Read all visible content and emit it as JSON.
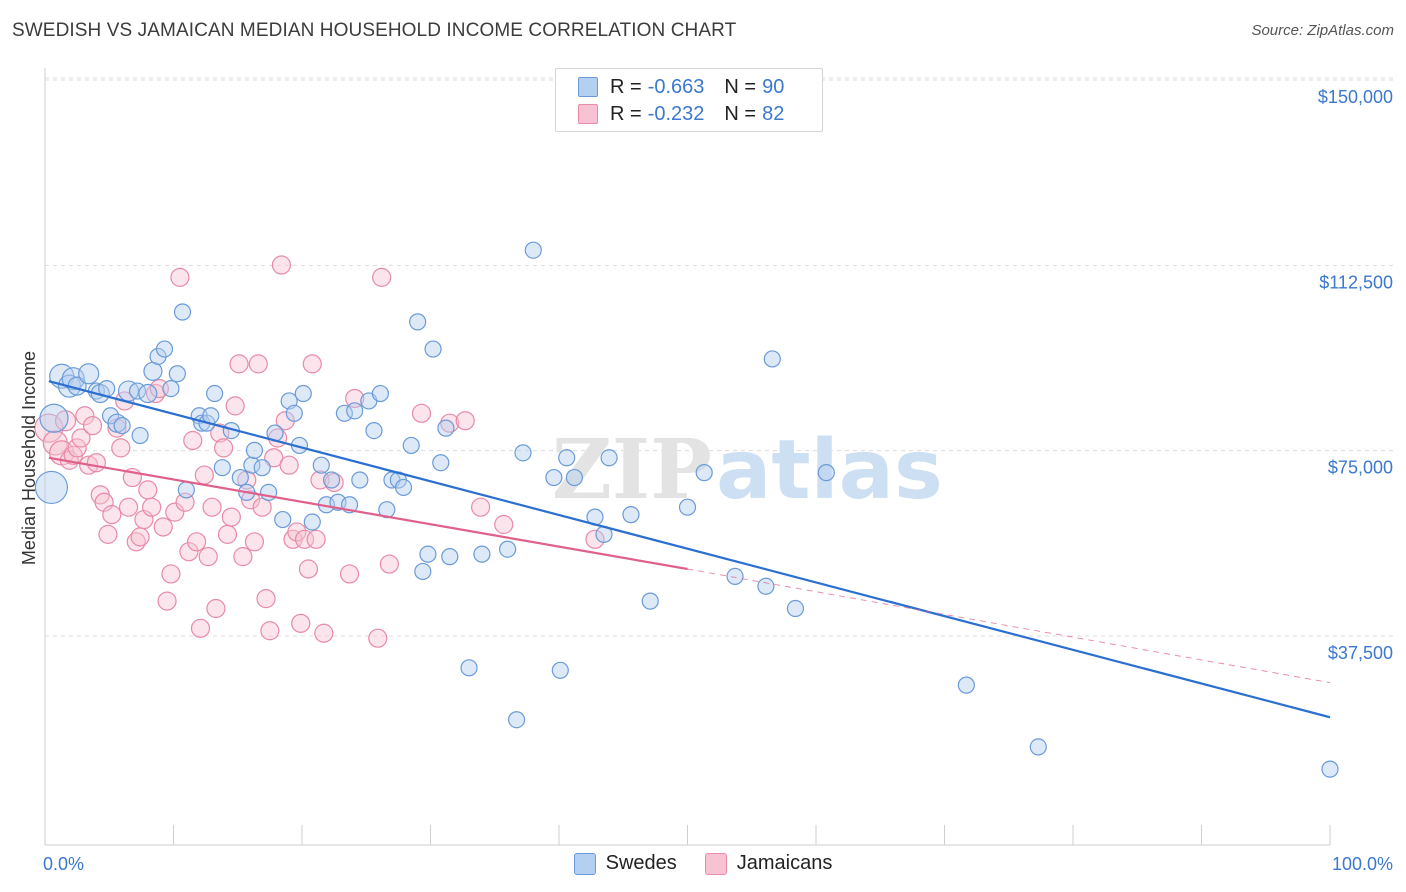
{
  "header": {
    "title": "SWEDISH VS JAMAICAN MEDIAN HOUSEHOLD INCOME CORRELATION CHART",
    "source": "Source: ZipAtlas.com"
  },
  "watermark": {
    "zip": "ZIP",
    "atlas": "atlas"
  },
  "legend": {
    "rows": [
      {
        "r_label": "R =",
        "r_value": "-0.663",
        "n_label": "N =",
        "n_value": "90"
      },
      {
        "r_label": "R =",
        "r_value": "-0.232",
        "n_label": "N =",
        "n_value": "82"
      }
    ]
  },
  "colors": {
    "swedes_fill": "#b5cff0",
    "swedes_stroke": "#6a9bd8",
    "swedes_line": "#2b6fd0",
    "jamaicans_fill": "#f7c3d2",
    "jamaicans_stroke": "#e88aa8",
    "jamaicans_line": "#e0608c",
    "grid": "#dcdcdc",
    "tick_label": "#3b78d0"
  },
  "chart_data": {
    "type": "scatter",
    "title": "SWEDISH VS JAMAICAN MEDIAN HOUSEHOLD INCOME CORRELATION CHART",
    "xlabel": "",
    "ylabel": "Median Household Income",
    "xlim": [
      0,
      100
    ],
    "ylim": [
      0,
      155000
    ],
    "x_tick_labels": [
      "0.0%",
      "100.0%"
    ],
    "y_ticks": [
      37500,
      75000,
      112500,
      150000
    ],
    "y_tick_labels": [
      "$37,500",
      "$75,000",
      "$112,500",
      "$150,000"
    ],
    "grid": true,
    "legend_position": "top-center and bottom",
    "series": [
      {
        "name": "Swedes",
        "r": -0.663,
        "n": 90,
        "trend": {
          "x0": 0.3,
          "y0": 92500,
          "x1": 100,
          "y1": 24500
        },
        "points": [
          [
            0.5,
            71000,
            16
          ],
          [
            0.7,
            85000,
            14
          ],
          [
            1.3,
            93500,
            12
          ],
          [
            1.9,
            91500,
            11
          ],
          [
            2.2,
            93000,
            11
          ],
          [
            2.5,
            91500,
            9
          ],
          [
            3.4,
            94000,
            10
          ],
          [
            4.0,
            90500,
            8
          ],
          [
            4.3,
            90000,
            9
          ],
          [
            4.8,
            91000,
            8
          ],
          [
            5.1,
            85500,
            8
          ],
          [
            5.6,
            84000,
            9
          ],
          [
            6.0,
            83500,
            8
          ],
          [
            6.5,
            90500,
            10
          ],
          [
            7.2,
            90500,
            8
          ],
          [
            7.4,
            81500,
            8
          ],
          [
            8.0,
            90000,
            9
          ],
          [
            8.4,
            94500,
            9
          ],
          [
            8.8,
            97500,
            8
          ],
          [
            9.3,
            99000,
            8
          ],
          [
            9.8,
            91000,
            8
          ],
          [
            10.3,
            94000,
            8
          ],
          [
            10.7,
            106500,
            8
          ],
          [
            11.0,
            70500,
            8
          ],
          [
            12.0,
            85500,
            8
          ],
          [
            12.2,
            84000,
            8
          ],
          [
            12.6,
            84000,
            8
          ],
          [
            12.9,
            85500,
            8
          ],
          [
            13.2,
            90000,
            8
          ],
          [
            13.8,
            75000,
            8
          ],
          [
            14.5,
            82500,
            8
          ],
          [
            15.2,
            73000,
            8
          ],
          [
            15.7,
            70000,
            8
          ],
          [
            16.1,
            75500,
            8
          ],
          [
            16.3,
            78500,
            8
          ],
          [
            16.9,
            75000,
            8
          ],
          [
            17.4,
            70000,
            8
          ],
          [
            17.9,
            82000,
            8
          ],
          [
            18.5,
            64500,
            8
          ],
          [
            19.0,
            88500,
            8
          ],
          [
            19.4,
            86000,
            8
          ],
          [
            19.8,
            79500,
            8
          ],
          [
            20.1,
            90000,
            8
          ],
          [
            20.8,
            64000,
            8
          ],
          [
            21.5,
            75500,
            8
          ],
          [
            21.9,
            67500,
            8
          ],
          [
            22.3,
            72500,
            8
          ],
          [
            22.8,
            68000,
            8
          ],
          [
            23.3,
            86000,
            8
          ],
          [
            23.7,
            67500,
            8
          ],
          [
            24.1,
            86500,
            8
          ],
          [
            24.5,
            72500,
            8
          ],
          [
            25.2,
            88500,
            8
          ],
          [
            25.6,
            82500,
            8
          ],
          [
            26.1,
            90000,
            8
          ],
          [
            26.6,
            66500,
            8
          ],
          [
            27.0,
            72500,
            8
          ],
          [
            27.5,
            72500,
            8
          ],
          [
            27.9,
            71000,
            8
          ],
          [
            28.5,
            79500,
            8
          ],
          [
            29.0,
            104500,
            8
          ],
          [
            29.4,
            54000,
            8
          ],
          [
            29.8,
            57500,
            8
          ],
          [
            30.2,
            99000,
            8
          ],
          [
            30.8,
            76000,
            8
          ],
          [
            31.2,
            83000,
            8
          ],
          [
            31.5,
            57000,
            8
          ],
          [
            33.0,
            34500,
            8
          ],
          [
            34.0,
            57500,
            8
          ],
          [
            36.0,
            58500,
            8
          ],
          [
            36.7,
            24000,
            8
          ],
          [
            37.2,
            78000,
            8
          ],
          [
            38.0,
            119000,
            8
          ],
          [
            39.6,
            73000,
            8
          ],
          [
            40.1,
            34000,
            8
          ],
          [
            40.6,
            77000,
            8
          ],
          [
            41.2,
            73000,
            8
          ],
          [
            42.8,
            65000,
            8
          ],
          [
            43.5,
            61500,
            8
          ],
          [
            43.9,
            77000,
            8
          ],
          [
            45.6,
            65500,
            8
          ],
          [
            47.1,
            48000,
            8
          ],
          [
            50.0,
            67000,
            8
          ],
          [
            51.3,
            74000,
            8
          ],
          [
            53.7,
            53000,
            8
          ],
          [
            56.1,
            51000,
            8
          ],
          [
            56.6,
            97000,
            8
          ],
          [
            58.4,
            46500,
            8
          ],
          [
            60.8,
            74000,
            8
          ],
          [
            71.7,
            31000,
            8
          ],
          [
            77.3,
            18500,
            8
          ],
          [
            100.0,
            14000,
            8
          ]
        ]
      },
      {
        "name": "Jamaicans",
        "r": -0.232,
        "n": 82,
        "trend": {
          "x0": 0.3,
          "y0": 77000,
          "x1": 50,
          "y1": 54500
        },
        "trend_extension": {
          "x0": 50,
          "y0": 54500,
          "x1": 100,
          "y1": 31500
        },
        "points": [
          [
            0.3,
            83000,
            14
          ],
          [
            0.8,
            80000,
            12
          ],
          [
            1.3,
            78000,
            12
          ],
          [
            1.6,
            84500,
            10
          ],
          [
            1.9,
            76500,
            9
          ],
          [
            2.2,
            77500,
            9
          ],
          [
            2.5,
            79000,
            9
          ],
          [
            2.8,
            81000,
            9
          ],
          [
            3.1,
            85500,
            9
          ],
          [
            3.4,
            75500,
            9
          ],
          [
            3.7,
            83500,
            9
          ],
          [
            4.0,
            76000,
            9
          ],
          [
            4.3,
            69500,
            9
          ],
          [
            4.6,
            68000,
            9
          ],
          [
            4.9,
            61500,
            9
          ],
          [
            5.2,
            65500,
            9
          ],
          [
            5.6,
            83000,
            9
          ],
          [
            5.9,
            79000,
            9
          ],
          [
            6.2,
            88500,
            9
          ],
          [
            6.5,
            67000,
            9
          ],
          [
            6.8,
            73000,
            9
          ],
          [
            7.1,
            60000,
            9
          ],
          [
            7.4,
            61000,
            9
          ],
          [
            7.7,
            64500,
            9
          ],
          [
            8.0,
            70500,
            9
          ],
          [
            8.3,
            67000,
            9
          ],
          [
            8.6,
            90000,
            9
          ],
          [
            8.9,
            91000,
            9
          ],
          [
            9.2,
            63000,
            9
          ],
          [
            9.5,
            48000,
            9
          ],
          [
            9.8,
            53500,
            9
          ],
          [
            10.1,
            66000,
            9
          ],
          [
            10.5,
            113500,
            9
          ],
          [
            10.9,
            68000,
            9
          ],
          [
            11.2,
            58000,
            9
          ],
          [
            11.5,
            80500,
            9
          ],
          [
            11.8,
            60000,
            9
          ],
          [
            12.1,
            42500,
            9
          ],
          [
            12.4,
            73500,
            9
          ],
          [
            12.7,
            57000,
            9
          ],
          [
            13.0,
            67000,
            9
          ],
          [
            13.3,
            46500,
            9
          ],
          [
            13.6,
            82000,
            9
          ],
          [
            13.9,
            79000,
            9
          ],
          [
            14.2,
            61500,
            9
          ],
          [
            14.5,
            65000,
            9
          ],
          [
            14.8,
            87500,
            9
          ],
          [
            15.1,
            96000,
            9
          ],
          [
            15.4,
            57000,
            9
          ],
          [
            15.7,
            72500,
            9
          ],
          [
            16.0,
            68500,
            9
          ],
          [
            16.3,
            60000,
            9
          ],
          [
            16.6,
            96000,
            9
          ],
          [
            16.9,
            67000,
            9
          ],
          [
            17.2,
            48500,
            9
          ],
          [
            17.5,
            42000,
            9
          ],
          [
            17.8,
            77000,
            9
          ],
          [
            18.1,
            81000,
            9
          ],
          [
            18.4,
            116000,
            9
          ],
          [
            18.7,
            84500,
            9
          ],
          [
            19.0,
            75500,
            9
          ],
          [
            19.3,
            60500,
            9
          ],
          [
            19.6,
            62000,
            9
          ],
          [
            19.9,
            43500,
            9
          ],
          [
            20.2,
            60500,
            9
          ],
          [
            20.5,
            54500,
            9
          ],
          [
            20.8,
            96000,
            9
          ],
          [
            21.1,
            60500,
            9
          ],
          [
            21.4,
            72500,
            9
          ],
          [
            21.7,
            41500,
            9
          ],
          [
            22.5,
            72000,
            9
          ],
          [
            23.7,
            53500,
            9
          ],
          [
            24.1,
            89000,
            9
          ],
          [
            25.9,
            40500,
            9
          ],
          [
            26.2,
            113500,
            9
          ],
          [
            26.8,
            55500,
            9
          ],
          [
            29.3,
            86000,
            9
          ],
          [
            31.5,
            84000,
            9
          ],
          [
            32.7,
            84500,
            9
          ],
          [
            33.9,
            67000,
            9
          ],
          [
            35.7,
            63500,
            9
          ],
          [
            42.8,
            60500,
            9
          ]
        ]
      }
    ]
  },
  "bottom_legend": {
    "swedes": "Swedes",
    "jamaicans": "Jamaicans"
  }
}
